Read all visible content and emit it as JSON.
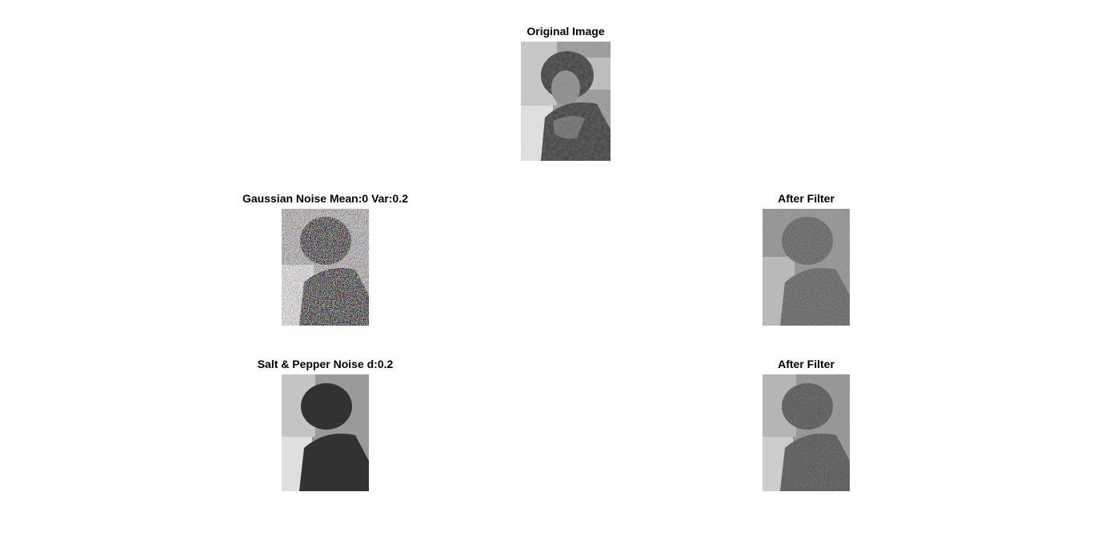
{
  "figure": {
    "background": "#ffffff",
    "subplots": [
      {
        "id": "original",
        "title": "Original Image",
        "image": "grayscale-portrait",
        "noise": "none"
      },
      {
        "id": "gauss",
        "title": "Gaussian Noise Mean:0 Var:0.2",
        "image": "grayscale-portrait",
        "noise": "gaussian"
      },
      {
        "id": "gauss_filt",
        "title": "After Filter",
        "image": "grayscale-portrait",
        "noise": "gaussian-filtered"
      },
      {
        "id": "sp",
        "title": "Salt & Pepper Noise d:0.2",
        "image": "grayscale-portrait",
        "noise": "salt-pepper"
      },
      {
        "id": "sp_filt",
        "title": "After Filter",
        "image": "grayscale-portrait",
        "noise": "salt-pepper-filtered"
      }
    ]
  }
}
